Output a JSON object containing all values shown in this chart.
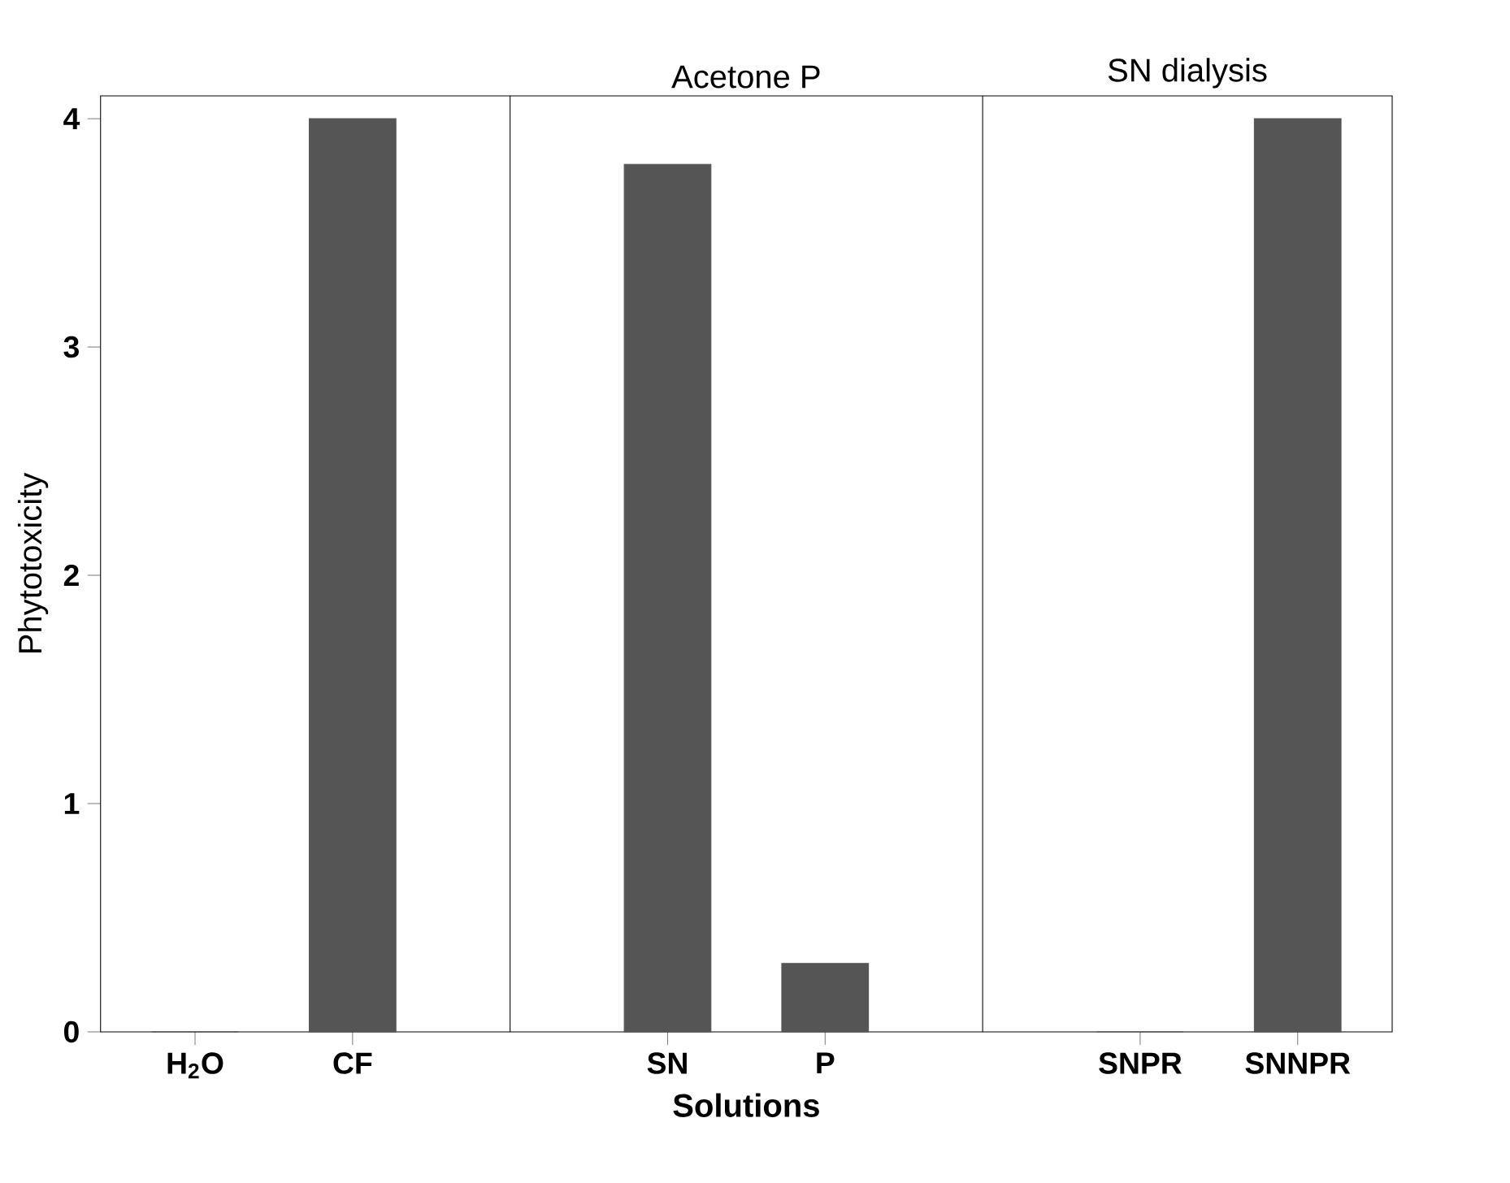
{
  "chart_data": {
    "type": "bar",
    "categories": [
      "H$_{2}$O",
      "CF",
      null,
      "SN",
      "P",
      null,
      "SNPR",
      "SNNPR"
    ],
    "values": [
      0,
      4,
      null,
      3.8,
      0.3,
      null,
      0,
      4
    ],
    "color": "#555555",
    "xlabel": "Solutions",
    "ylabel": "Phytotoxicity",
    "ylim": [
      0,
      4.1
    ],
    "yticks": [
      0,
      1,
      2,
      3,
      4
    ],
    "annotations": [
      "Acetone P",
      "SN dialysis"
    ]
  }
}
